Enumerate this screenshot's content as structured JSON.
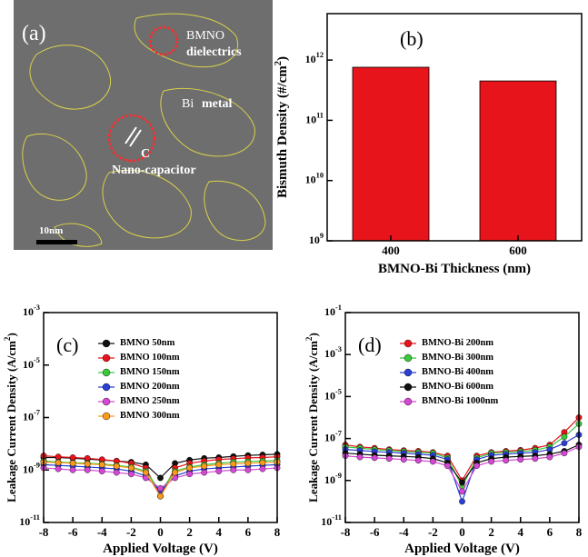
{
  "micrograph": {
    "panel_label": "(a)",
    "dielectric_label": "BMNO",
    "dielectric_sub": "dielectrics",
    "metal_label_1": "Bi",
    "metal_label_2": "metal",
    "capacitor_mark": "C",
    "capacitor_label": "Nano-capacitor",
    "scale_bar": "10nm"
  },
  "chart_data": [
    {
      "type": "bar",
      "panel_label": "(b)",
      "y_label": "Bismuth Density (#/cm^2)",
      "x_label": "BMNO-Bi Thickness (nm)",
      "categories": [
        "400",
        "600"
      ],
      "values": [
        760000000000.0,
        450000000000.0
      ],
      "color": "#e8141b",
      "log_y": true,
      "ylim": [
        1000000000.0,
        5900000000000.0
      ],
      "yticks": [
        {
          "value": 1000000000.0,
          "label": "10^9"
        },
        {
          "value": 10000000000.0,
          "label": "10^10"
        },
        {
          "value": 100000000000.0,
          "label": "10^11"
        },
        {
          "value": 1000000000000.0,
          "label": "10^12"
        }
      ]
    },
    {
      "type": "line",
      "panel_label": "(c)",
      "y_label": "Leakage Current Density (A/cm^2)",
      "x_label": "Applied Voltage (V)",
      "log_y": true,
      "legend": "upper left",
      "x": [
        -8,
        -7,
        -6,
        -5,
        -4,
        -3,
        -2,
        -1,
        0,
        1,
        2,
        3,
        4,
        5,
        6,
        7,
        8
      ],
      "xlim": [
        -8,
        8
      ],
      "xticks": [
        -8,
        -6,
        -4,
        -2,
        0,
        2,
        4,
        6,
        8
      ],
      "ylim": [
        1e-11,
        0.001
      ],
      "yticks": [
        {
          "value": 1e-11,
          "label": "10^-11"
        },
        {
          "value": 1e-09,
          "label": "10^-9"
        },
        {
          "value": 1e-07,
          "label": "10^-7"
        },
        {
          "value": 1e-05,
          "label": "10^-5"
        },
        {
          "value": 0.001,
          "label": "10^-3"
        }
      ],
      "series": [
        {
          "name": "BMNO 50nm",
          "color": "#111111",
          "values": [
            3e-09,
            3e-09,
            2.8e-09,
            2.6e-09,
            2.4e-09,
            2.2e-09,
            2e-09,
            1.6e-09,
            5e-10,
            1.8e-09,
            2.4e-09,
            2.8e-09,
            3e-09,
            3.3e-09,
            3.6e-09,
            3.8e-09,
            4e-09
          ]
        },
        {
          "name": "BMNO 100nm",
          "color": "#e8141b",
          "values": [
            3.5e-09,
            3.2e-09,
            3e-09,
            2.8e-09,
            2.5e-09,
            2.2e-09,
            1.8e-09,
            1.2e-09,
            1e-10,
            1.2e-09,
            1.8e-09,
            2.2e-09,
            2.5e-09,
            2.7e-09,
            2.9e-09,
            3e-09,
            3.2e-09
          ]
        },
        {
          "name": "BMNO 150nm",
          "color": "#3cc83c",
          "values": [
            2.2e-09,
            2e-09,
            1.9e-09,
            1.8e-09,
            1.7e-09,
            1.5e-09,
            1.3e-09,
            9e-10,
            1.5e-10,
            9e-10,
            1.3e-09,
            1.6e-09,
            1.8e-09,
            2e-09,
            2.1e-09,
            2.2e-09,
            2.3e-09
          ]
        },
        {
          "name": "BMNO 200nm",
          "color": "#2a3fd4",
          "values": [
            1.6e-09,
            1.5e-09,
            1.4e-09,
            1.3e-09,
            1.2e-09,
            1.1e-09,
            9e-10,
            6e-10,
            1.5e-10,
            6e-10,
            9e-10,
            1.1e-09,
            1.2e-09,
            1.3e-09,
            1.4e-09,
            1.5e-09,
            1.6e-09
          ]
        },
        {
          "name": "BMNO 250nm",
          "color": "#d448d4",
          "values": [
            1.2e-09,
            1.1e-09,
            1e-09,
            1e-09,
            9e-10,
            8e-10,
            7e-10,
            5e-10,
            2e-10,
            5e-10,
            7e-10,
            8e-10,
            9e-10,
            1e-09,
            1e-09,
            1.1e-09,
            1.2e-09
          ]
        },
        {
          "name": "BMNO 300nm",
          "color": "#f79a1e",
          "values": [
            2e-09,
            1.9e-09,
            1.8e-09,
            1.7e-09,
            1.6e-09,
            1.4e-09,
            1.2e-09,
            8e-10,
            1e-10,
            8e-10,
            1.2e-09,
            1.4e-09,
            1.6e-09,
            1.7e-09,
            1.8e-09,
            1.9e-09,
            2e-09
          ]
        }
      ]
    },
    {
      "type": "line",
      "panel_label": "(d)",
      "y_label": "Leakage Current Density (A/cm^2)",
      "x_label": "Applied Voltage (V)",
      "log_y": true,
      "legend": "upper left",
      "x": [
        -8,
        -7,
        -6,
        -5,
        -4,
        -3,
        -2,
        -1,
        0,
        1,
        2,
        3,
        4,
        5,
        6,
        7,
        8
      ],
      "xlim": [
        -8,
        8
      ],
      "xticks": [
        -8,
        -6,
        -4,
        -2,
        0,
        2,
        4,
        6,
        8
      ],
      "ylim": [
        1e-11,
        0.1
      ],
      "yticks": [
        {
          "value": 1e-11,
          "label": "10^-11"
        },
        {
          "value": 1e-09,
          "label": "10^-9"
        },
        {
          "value": 1e-07,
          "label": "10^-7"
        },
        {
          "value": 1e-05,
          "label": "10^-5"
        },
        {
          "value": 0.001,
          "label": "10^-3"
        },
        {
          "value": 0.1,
          "label": "10^-1"
        }
      ],
      "series": [
        {
          "name": "BMNO-Bi 200nm",
          "color": "#e8141b",
          "values": [
            5e-08,
            4e-08,
            3.5e-08,
            3e-08,
            2.7e-08,
            2.5e-08,
            2.2e-08,
            1.5e-08,
            1e-09,
            1.5e-08,
            2.2e-08,
            2.5e-08,
            2.8e-08,
            3.5e-08,
            5e-08,
            2e-07,
            1e-06
          ]
        },
        {
          "name": "BMNO-Bi 300nm",
          "color": "#3cc83c",
          "values": [
            4e-08,
            3.5e-08,
            3e-08,
            2.7e-08,
            2.4e-08,
            2.2e-08,
            2e-08,
            1.2e-08,
            5e-10,
            1.2e-08,
            2e-08,
            2.2e-08,
            2.4e-08,
            2.8e-08,
            4e-08,
            1.2e-07,
            5e-07
          ]
        },
        {
          "name": "BMNO-Bi 400nm",
          "color": "#2a3fd4",
          "values": [
            3e-08,
            2.7e-08,
            2.4e-08,
            2.2e-08,
            2e-08,
            1.8e-08,
            1.6e-08,
            1e-08,
            1e-10,
            1e-08,
            1.6e-08,
            1.8e-08,
            2e-08,
            2.2e-08,
            3e-08,
            6e-08,
            1.5e-07
          ]
        },
        {
          "name": "BMNO-Bi 600nm",
          "color": "#111111",
          "values": [
            2e-08,
            1.8e-08,
            1.6e-08,
            1.5e-08,
            1.4e-08,
            1.3e-08,
            1.1e-08,
            7e-09,
            8e-10,
            7e-09,
            1.1e-08,
            1.3e-08,
            1.4e-08,
            1.5e-08,
            1.8e-08,
            2.5e-08,
            5e-08
          ]
        },
        {
          "name": "BMNO-Bi 1000nm",
          "color": "#d448d4",
          "values": [
            1.5e-08,
            1.3e-08,
            1.2e-08,
            1.1e-08,
            1e-08,
            9e-09,
            8e-09,
            5e-09,
            3e-10,
            5e-09,
            8e-09,
            9e-09,
            1e-08,
            1.1e-08,
            1.3e-08,
            2e-08,
            4e-08
          ]
        }
      ]
    }
  ]
}
